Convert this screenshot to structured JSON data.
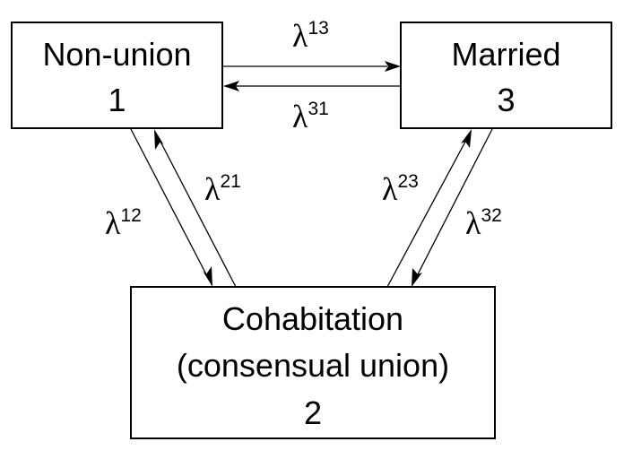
{
  "states": {
    "nonunion": {
      "name": "Non-union",
      "number": "1"
    },
    "married": {
      "name": "Married",
      "number": "3"
    },
    "cohabitation": {
      "name": "Cohabitation",
      "subtitle": "(consensual union)",
      "number": "2"
    }
  },
  "transitions": {
    "t13": {
      "symbol": "λ",
      "index": "13"
    },
    "t31": {
      "symbol": "λ",
      "index": "31"
    },
    "t12": {
      "symbol": "λ",
      "index": "12"
    },
    "t21": {
      "symbol": "λ",
      "index": "21"
    },
    "t23": {
      "symbol": "λ",
      "index": "23"
    },
    "t32": {
      "symbol": "λ",
      "index": "32"
    }
  }
}
